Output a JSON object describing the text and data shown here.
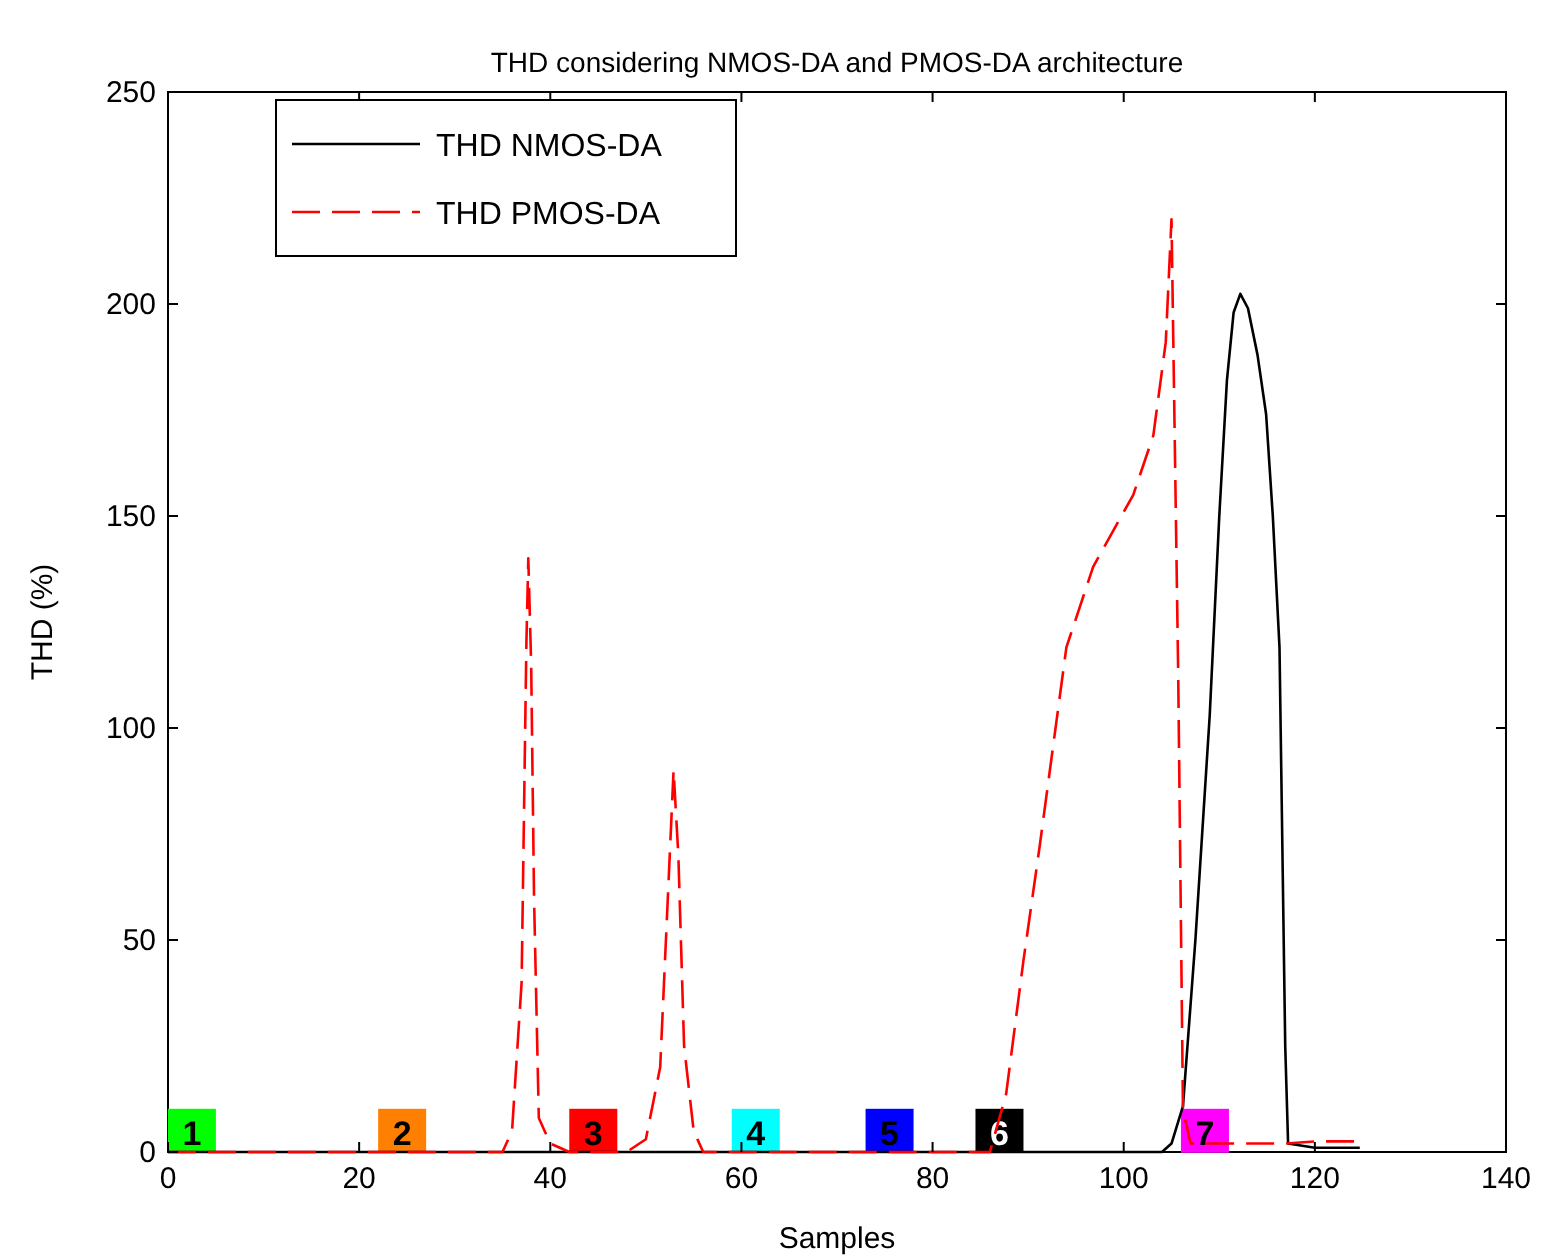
{
  "chart_data": {
    "type": "line",
    "title": "THD considering NMOS-DA and PMOS-DA architecture",
    "xlabel": "Samples",
    "ylabel": "THD (%)",
    "xlim": [
      0,
      140
    ],
    "xticks": [
      0,
      20,
      40,
      60,
      80,
      100,
      120,
      140
    ],
    "ylim": [
      0,
      250
    ],
    "yticks": [
      0,
      50,
      100,
      150,
      200,
      250
    ],
    "grid": false,
    "legend": "top left",
    "series": [
      {
        "name": "THD NMOS-DA",
        "color": "#000000",
        "line_style": "solid",
        "x": [
          0,
          104,
          105,
          106.2,
          107.5,
          109,
          110,
          110.8,
          111.5,
          112.2,
          113,
          114,
          114.9,
          115.6,
          116.3,
          116.9,
          117.2,
          120,
          124.7
        ],
        "values": [
          0,
          0,
          2,
          10.8,
          50,
          103,
          150,
          182,
          198,
          202.4,
          199,
          188,
          174,
          150,
          119,
          25,
          2,
          1,
          1
        ]
      },
      {
        "name": "THD PMOS-DA",
        "color": "#ff0000",
        "line_style": "dashed",
        "x": [
          0,
          35,
          36,
          37,
          37.5,
          37.7,
          38,
          38.3,
          38.8,
          40,
          42,
          48,
          50,
          51.5,
          52.3,
          52.9,
          53.4,
          54,
          55,
          56,
          86,
          87.7,
          89.5,
          91.2,
          94,
          96.8,
          101,
          103.1,
          104.4,
          105,
          105.7,
          106.2,
          107,
          117,
          120,
          124.7
        ],
        "values": [
          0,
          0,
          5,
          40,
          120,
          140,
          115,
          60,
          8,
          2,
          0,
          0,
          3,
          20,
          60,
          90,
          70,
          25,
          5,
          0,
          0,
          13.7,
          45,
          72,
          119,
          138,
          155,
          169,
          191,
          220,
          113,
          10,
          2,
          2,
          2.5,
          2.5
        ]
      }
    ],
    "annotations": [
      {
        "text": "1",
        "x": 2.5,
        "y": 5
      },
      {
        "text": "2",
        "x": 24.5,
        "y": 5
      },
      {
        "text": "3",
        "x": 44.5,
        "y": 5
      },
      {
        "text": "4",
        "x": 61.5,
        "y": 5
      },
      {
        "text": "5",
        "x": 75.5,
        "y": 5
      },
      {
        "text": "6",
        "x": 87,
        "y": 5
      },
      {
        "text": "7",
        "x": 108.5,
        "y": 5
      }
    ]
  }
}
